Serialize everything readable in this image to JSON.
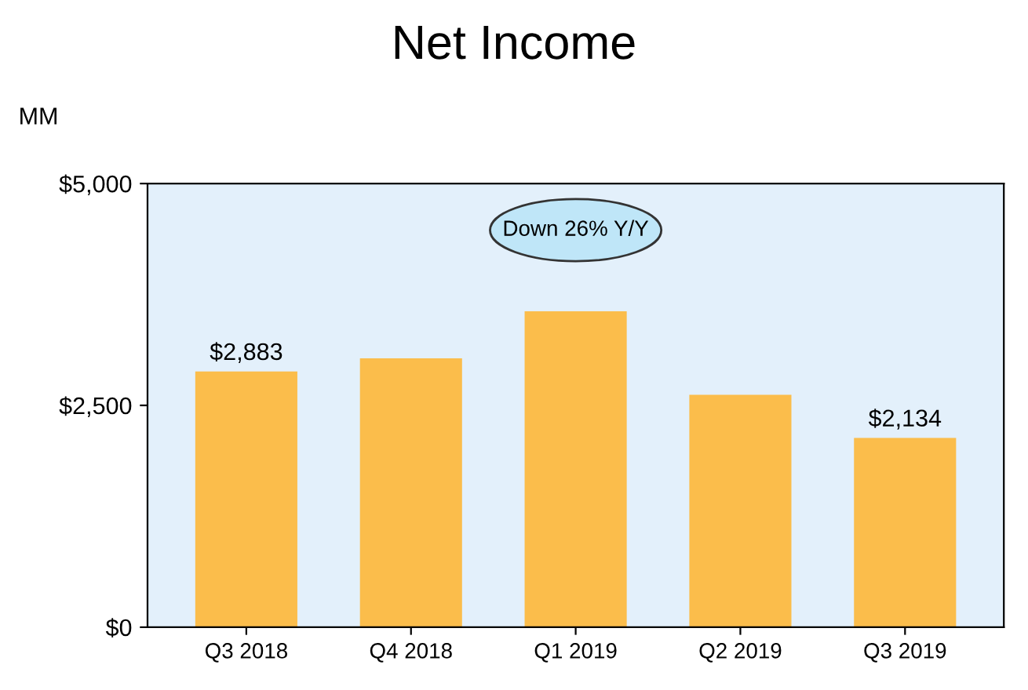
{
  "chart_data": {
    "type": "bar",
    "title": "Net Income",
    "ylabel": "MM",
    "categories": [
      "Q3 2018",
      "Q4 2018",
      "Q1 2019",
      "Q2 2019",
      "Q3 2019"
    ],
    "values": [
      2883,
      3030,
      3560,
      2620,
      2134
    ],
    "value_labels": [
      "$2,883",
      null,
      null,
      null,
      "$2,134"
    ],
    "color": "#fbbd4b",
    "ylim": [
      0,
      5000
    ],
    "yticks": [
      {
        "value": 0,
        "label": "$0"
      },
      {
        "value": 2500,
        "label": "$2,500"
      },
      {
        "value": 5000,
        "label": "$5,000"
      }
    ],
    "annotations": [
      "Down 26% Y/Y"
    ],
    "grid": false,
    "legend": false
  }
}
